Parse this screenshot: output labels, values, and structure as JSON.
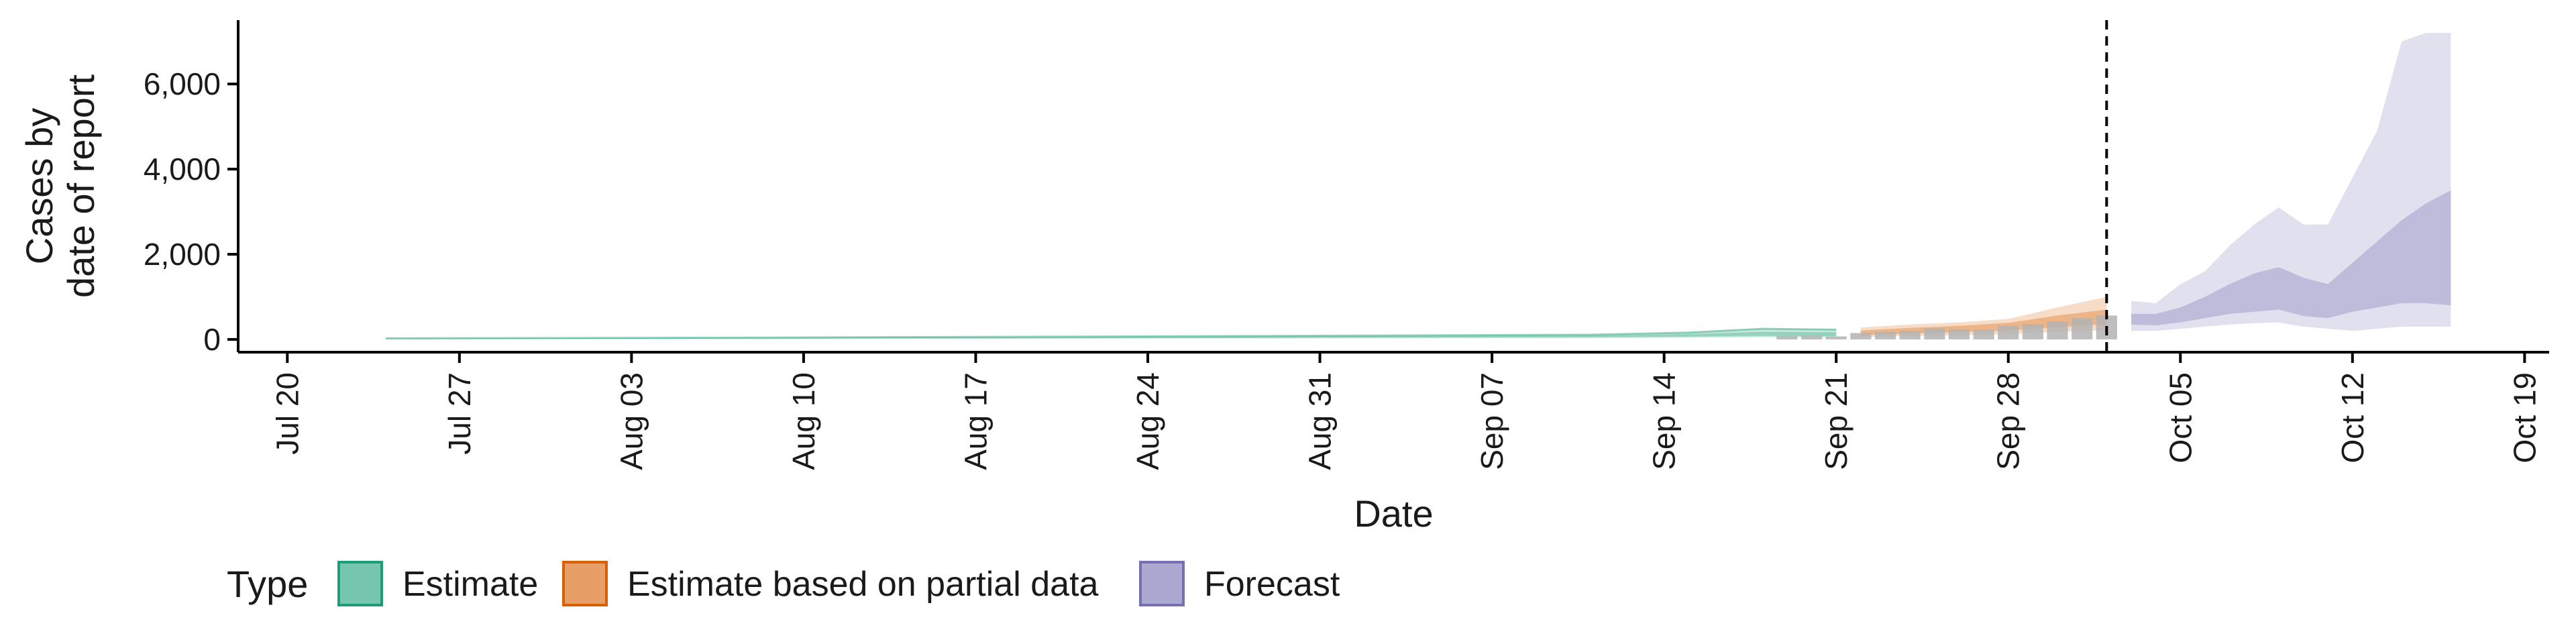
{
  "chart_data": {
    "type": "area",
    "xlabel": "Date",
    "ylabel_lines": [
      "Cases by",
      "date of report"
    ],
    "x_axis": {
      "range": [
        "2020-07-18",
        "2020-10-20"
      ],
      "ticks": [
        "2020-07-20",
        "2020-07-27",
        "2020-08-03",
        "2020-08-10",
        "2020-08-17",
        "2020-08-24",
        "2020-08-31",
        "2020-09-07",
        "2020-09-14",
        "2020-09-21",
        "2020-09-28",
        "2020-10-05",
        "2020-10-12",
        "2020-10-19"
      ],
      "tick_labels": [
        "Jul 20",
        "Jul 27",
        "Aug 03",
        "Aug 10",
        "Aug 17",
        "Aug 24",
        "Aug 31",
        "Sep 07",
        "Sep 14",
        "Sep 21",
        "Sep 28",
        "Oct 05",
        "Oct 12",
        "Oct 19"
      ]
    },
    "y_axis": {
      "range": [
        -300,
        7500
      ],
      "ticks": [
        0,
        2000,
        4000,
        6000
      ],
      "tick_labels": [
        "0",
        "2,000",
        "4,000",
        "6,000"
      ]
    },
    "grid": false,
    "legend": {
      "title": "Type",
      "placement": "bottom",
      "items": [
        {
          "label": "Estimate",
          "fill": "#1B9E77",
          "stroke": "#1B9E77"
        },
        {
          "label": "Estimate based on partial data",
          "fill": "#D95F02",
          "stroke": "#D95F02"
        },
        {
          "label": "Forecast",
          "fill": "#7570B3",
          "stroke": "#7570B3"
        }
      ]
    },
    "vline_date": "2020-10-02",
    "reported_cases": {
      "color": "#b3b3b3",
      "dates": [
        "2020-09-19",
        "2020-09-20",
        "2020-09-21",
        "2020-09-22",
        "2020-09-23",
        "2020-09-24",
        "2020-09-25",
        "2020-09-26",
        "2020-09-27",
        "2020-09-28",
        "2020-09-29",
        "2020-09-30",
        "2020-10-01",
        "2020-10-02"
      ],
      "values": [
        80,
        90,
        70,
        150,
        180,
        200,
        260,
        240,
        230,
        320,
        360,
        420,
        500,
        560
      ]
    },
    "series": [
      {
        "name": "Estimate",
        "color": "#1B9E77",
        "dates": [
          "2020-07-24",
          "2020-07-31",
          "2020-08-07",
          "2020-08-14",
          "2020-08-21",
          "2020-08-28",
          "2020-09-04",
          "2020-09-11",
          "2020-09-15",
          "2020-09-18",
          "2020-09-21"
        ],
        "median": [
          15,
          20,
          25,
          35,
          40,
          50,
          60,
          70,
          90,
          120,
          110
        ],
        "lower90": [
          5,
          8,
          10,
          15,
          18,
          22,
          28,
          30,
          40,
          50,
          45
        ],
        "upper90": [
          25,
          32,
          40,
          55,
          65,
          80,
          95,
          110,
          160,
          250,
          230
        ],
        "lower50": [
          10,
          14,
          18,
          25,
          29,
          36,
          44,
          50,
          65,
          85,
          78
        ],
        "upper50": [
          20,
          26,
          32,
          45,
          52,
          65,
          78,
          90,
          125,
          180,
          170
        ]
      },
      {
        "name": "Estimate based on partial data",
        "color": "#D95F02",
        "dates": [
          "2020-09-22",
          "2020-09-24",
          "2020-09-26",
          "2020-09-28",
          "2020-09-30",
          "2020-10-02"
        ],
        "median": [
          150,
          200,
          250,
          300,
          400,
          500
        ],
        "lower90": [
          60,
          80,
          100,
          120,
          180,
          220
        ],
        "upper90": [
          280,
          350,
          400,
          480,
          750,
          1000
        ],
        "lower50": [
          100,
          140,
          170,
          210,
          290,
          360
        ],
        "upper50": [
          210,
          270,
          320,
          390,
          560,
          700
        ]
      },
      {
        "name": "Forecast",
        "color": "#7570B3",
        "dates": [
          "2020-10-03",
          "2020-10-04",
          "2020-10-05",
          "2020-10-06",
          "2020-10-07",
          "2020-10-08",
          "2020-10-09",
          "2020-10-10",
          "2020-10-11",
          "2020-10-12",
          "2020-10-13",
          "2020-10-14",
          "2020-10-15",
          "2020-10-16"
        ],
        "median": [
          450,
          420,
          520,
          650,
          800,
          900,
          1000,
          850,
          800,
          1000,
          1200,
          1400,
          1600,
          1500
        ],
        "lower90": [
          200,
          200,
          250,
          300,
          350,
          380,
          400,
          300,
          250,
          200,
          250,
          300,
          300,
          300
        ],
        "upper90": [
          900,
          850,
          1300,
          1600,
          2200,
          2700,
          3100,
          2700,
          2700,
          3800,
          4900,
          7000,
          7200,
          7200
        ],
        "lower50": [
          350,
          330,
          400,
          500,
          600,
          650,
          700,
          550,
          500,
          650,
          750,
          850,
          850,
          800
        ],
        "upper50": [
          600,
          600,
          750,
          1000,
          1300,
          1550,
          1700,
          1450,
          1300,
          1800,
          2300,
          2800,
          3200,
          3500
        ]
      }
    ]
  }
}
